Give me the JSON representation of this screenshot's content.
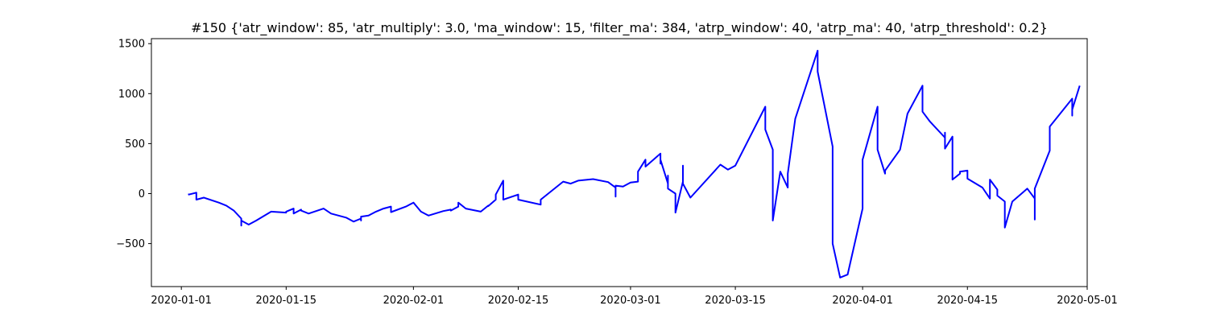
{
  "chart_data": {
    "type": "line",
    "title": "#150 {'atr_window': 85, 'atr_multiply': 3.0, 'ma_window': 15, 'filter_ma': 384, 'atrp_window': 40, 'atrp_ma': 40, 'atrp_threshold': 0.2}",
    "xlabel": "",
    "ylabel": "",
    "x_axis": {
      "scale": "date",
      "range": [
        "2019-12-28",
        "2020-05-01"
      ],
      "ticks": [
        {
          "value": "2020-01-01",
          "label": "2020-01-01"
        },
        {
          "value": "2020-01-15",
          "label": "2020-01-15"
        },
        {
          "value": "2020-02-01",
          "label": "2020-02-01"
        },
        {
          "value": "2020-02-15",
          "label": "2020-02-15"
        },
        {
          "value": "2020-03-01",
          "label": "2020-03-01"
        },
        {
          "value": "2020-03-15",
          "label": "2020-03-15"
        },
        {
          "value": "2020-04-01",
          "label": "2020-04-01"
        },
        {
          "value": "2020-04-15",
          "label": "2020-04-15"
        },
        {
          "value": "2020-05-01",
          "label": "2020-05-01"
        }
      ]
    },
    "y_axis": {
      "range": [
        -930,
        1550
      ],
      "ticks": [
        {
          "value": -500,
          "label": "−500"
        },
        {
          "value": 0,
          "label": "0"
        },
        {
          "value": 500,
          "label": "500"
        },
        {
          "value": 1000,
          "label": "1000"
        },
        {
          "value": 1500,
          "label": "1500"
        }
      ]
    },
    "grid": false,
    "legend": "none",
    "series": [
      {
        "color": "#0000ff",
        "points": [
          [
            "2020-01-02",
            0
          ],
          [
            "2020-01-02",
            -10
          ],
          [
            "2020-01-03",
            10
          ],
          [
            "2020-01-03",
            -50
          ],
          [
            "2020-01-03",
            -30
          ],
          [
            "2020-01-03",
            -60
          ],
          [
            "2020-01-04",
            -40
          ],
          [
            "2020-01-06",
            -90
          ],
          [
            "2020-01-07",
            -120
          ],
          [
            "2020-01-08",
            -170
          ],
          [
            "2020-01-09",
            -250
          ],
          [
            "2020-01-09",
            -320
          ],
          [
            "2020-01-09",
            -270
          ],
          [
            "2020-01-10",
            -310
          ],
          [
            "2020-01-11",
            -270
          ],
          [
            "2020-01-13",
            -180
          ],
          [
            "2020-01-14",
            -185
          ],
          [
            "2020-01-15",
            -190
          ],
          [
            "2020-01-15",
            -180
          ],
          [
            "2020-01-16",
            -150
          ],
          [
            "2020-01-16",
            -200
          ],
          [
            "2020-01-17",
            -160
          ],
          [
            "2020-01-17",
            -170
          ],
          [
            "2020-01-18",
            -200
          ],
          [
            "2020-01-20",
            -150
          ],
          [
            "2020-01-21",
            -200
          ],
          [
            "2020-01-23",
            -240
          ],
          [
            "2020-01-24",
            -280
          ],
          [
            "2020-01-25",
            -250
          ],
          [
            "2020-01-25",
            -270
          ],
          [
            "2020-01-25",
            -230
          ],
          [
            "2020-01-26",
            -220
          ],
          [
            "2020-01-27",
            -180
          ],
          [
            "2020-01-28",
            -150
          ],
          [
            "2020-01-29",
            -130
          ],
          [
            "2020-01-29",
            -185
          ],
          [
            "2020-01-31",
            -130
          ],
          [
            "2020-02-01",
            -90
          ],
          [
            "2020-02-02",
            -180
          ],
          [
            "2020-02-03",
            -220
          ],
          [
            "2020-02-05",
            -175
          ],
          [
            "2020-02-06",
            -160
          ],
          [
            "2020-02-06",
            -170
          ],
          [
            "2020-02-07",
            -130
          ],
          [
            "2020-02-07",
            -90
          ],
          [
            "2020-02-08",
            -150
          ],
          [
            "2020-02-10",
            -180
          ],
          [
            "2020-02-11",
            -120
          ],
          [
            "2020-02-11",
            -125
          ],
          [
            "2020-02-12",
            -60
          ],
          [
            "2020-02-12",
            -10
          ],
          [
            "2020-02-13",
            130
          ],
          [
            "2020-02-13",
            80
          ],
          [
            "2020-02-13",
            -60
          ],
          [
            "2020-02-15",
            -10
          ],
          [
            "2020-02-15",
            -60
          ],
          [
            "2020-02-18",
            -110
          ],
          [
            "2020-02-18",
            -60
          ],
          [
            "2020-02-21",
            120
          ],
          [
            "2020-02-22",
            100
          ],
          [
            "2020-02-23",
            130
          ],
          [
            "2020-02-25",
            145
          ],
          [
            "2020-02-27",
            115
          ],
          [
            "2020-02-28",
            60
          ],
          [
            "2020-02-28",
            -30
          ],
          [
            "2020-02-28",
            80
          ],
          [
            "2020-02-29",
            70
          ],
          [
            "2020-03-01",
            110
          ],
          [
            "2020-03-02",
            120
          ],
          [
            "2020-03-02",
            220
          ],
          [
            "2020-03-03",
            340
          ],
          [
            "2020-03-03",
            270
          ],
          [
            "2020-03-05",
            400
          ],
          [
            "2020-03-05",
            300
          ],
          [
            "2020-03-05",
            340
          ],
          [
            "2020-03-06",
            100
          ],
          [
            "2020-03-06",
            60
          ],
          [
            "2020-03-06",
            180
          ],
          [
            "2020-03-06",
            50
          ],
          [
            "2020-03-07",
            0
          ],
          [
            "2020-03-07",
            -190
          ],
          [
            "2020-03-08",
            120
          ],
          [
            "2020-03-08",
            280
          ],
          [
            "2020-03-08",
            100
          ],
          [
            "2020-03-09",
            -40
          ],
          [
            "2020-03-13",
            290
          ],
          [
            "2020-03-14",
            240
          ],
          [
            "2020-03-15",
            280
          ],
          [
            "2020-03-19",
            870
          ],
          [
            "2020-03-19",
            640
          ],
          [
            "2020-03-20",
            440
          ],
          [
            "2020-03-20",
            280
          ],
          [
            "2020-03-20",
            -100
          ],
          [
            "2020-03-20",
            -270
          ],
          [
            "2020-03-21",
            220
          ],
          [
            "2020-03-22",
            60
          ],
          [
            "2020-03-22",
            200
          ],
          [
            "2020-03-23",
            750
          ],
          [
            "2020-03-26",
            1430
          ],
          [
            "2020-03-26",
            1220
          ],
          [
            "2020-03-28",
            470
          ],
          [
            "2020-03-28",
            100
          ],
          [
            "2020-03-28",
            -500
          ],
          [
            "2020-03-29",
            -840
          ],
          [
            "2020-03-30",
            -810
          ],
          [
            "2020-04-01",
            -150
          ],
          [
            "2020-04-01",
            340
          ],
          [
            "2020-04-03",
            870
          ],
          [
            "2020-04-03",
            440
          ],
          [
            "2020-04-04",
            200
          ],
          [
            "2020-04-04",
            230
          ],
          [
            "2020-04-06",
            440
          ],
          [
            "2020-04-07",
            800
          ],
          [
            "2020-04-09",
            1080
          ],
          [
            "2020-04-09",
            960
          ],
          [
            "2020-04-09",
            820
          ],
          [
            "2020-04-10",
            720
          ],
          [
            "2020-04-12",
            560
          ],
          [
            "2020-04-12",
            610
          ],
          [
            "2020-04-12",
            450
          ],
          [
            "2020-04-13",
            570
          ],
          [
            "2020-04-13",
            290
          ],
          [
            "2020-04-13",
            140
          ],
          [
            "2020-04-14",
            200
          ],
          [
            "2020-04-14",
            220
          ],
          [
            "2020-04-15",
            230
          ],
          [
            "2020-04-15",
            150
          ],
          [
            "2020-04-17",
            60
          ],
          [
            "2020-04-18",
            -50
          ],
          [
            "2020-04-18",
            80
          ],
          [
            "2020-04-18",
            10
          ],
          [
            "2020-04-18",
            140
          ],
          [
            "2020-04-19",
            40
          ],
          [
            "2020-04-19",
            -20
          ],
          [
            "2020-04-20",
            -80
          ],
          [
            "2020-04-20",
            -340
          ],
          [
            "2020-04-21",
            -80
          ],
          [
            "2020-04-23",
            50
          ],
          [
            "2020-04-24",
            -50
          ],
          [
            "2020-04-24",
            -260
          ],
          [
            "2020-04-24",
            50
          ],
          [
            "2020-04-26",
            430
          ],
          [
            "2020-04-26",
            670
          ],
          [
            "2020-04-29",
            950
          ],
          [
            "2020-04-29",
            900
          ],
          [
            "2020-04-29",
            780
          ],
          [
            "2020-04-29",
            840
          ],
          [
            "2020-04-30",
            1080
          ]
        ]
      }
    ]
  }
}
